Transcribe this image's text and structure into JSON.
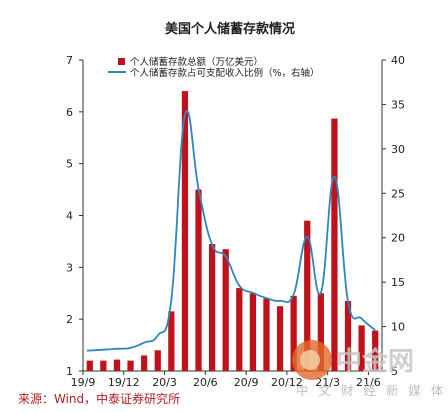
{
  "chart_data": {
    "type": "bar+line",
    "title": "美国个人储蓄存款情况",
    "legend": [
      "个人储蓄存款总额（万亿美元）",
      "个人储蓄存款占可支配收入比例（%，右轴）"
    ],
    "legend_position": "top-left",
    "colors": {
      "bar": "#c0121b",
      "line": "#2e86c1",
      "axis": "#333333"
    },
    "y_left": {
      "ticks": [
        "1",
        "2",
        "3",
        "4",
        "5",
        "6",
        "7"
      ],
      "ylim": [
        1,
        7
      ]
    },
    "y_right": {
      "ticks": [
        "5",
        "10",
        "15",
        "20",
        "25",
        "30",
        "35",
        "40"
      ],
      "ylim": [
        5,
        40
      ]
    },
    "x_ticks": [
      "19/9",
      "19/12",
      "20/3",
      "20/6",
      "20/9",
      "20/12",
      "21/3",
      "21/6"
    ],
    "x_tick_index": [
      0,
      3,
      6,
      9,
      12,
      15,
      18,
      21
    ],
    "categories": [
      "2019-09",
      "2019-10",
      "2019-11",
      "2019-12",
      "2020-01",
      "2020-02",
      "2020-03",
      "2020-04",
      "2020-05",
      "2020-06",
      "2020-07",
      "2020-08",
      "2020-09",
      "2020-10",
      "2020-11",
      "2020-12",
      "2021-01",
      "2021-02",
      "2021-03",
      "2021-04",
      "2021-05",
      "2021-06"
    ],
    "series": [
      {
        "name": "个人储蓄存款总额（万亿美元）",
        "kind": "bar",
        "axis": "left",
        "values": [
          1.2,
          1.2,
          1.22,
          1.2,
          1.3,
          1.4,
          2.15,
          6.4,
          4.5,
          3.45,
          3.35,
          2.6,
          2.5,
          2.4,
          2.25,
          2.45,
          3.9,
          2.5,
          5.87,
          2.35,
          1.88,
          1.78
        ]
      },
      {
        "name": "个人储蓄存款占可支配收入比例（%，右轴）",
        "kind": "line",
        "axis": "right",
        "values": [
          7.3,
          7.4,
          7.5,
          7.6,
          8.2,
          9.0,
          13.0,
          33.8,
          25.5,
          19.2,
          17.9,
          14.6,
          13.8,
          13.2,
          12.9,
          13.6,
          20.1,
          13.8,
          26.9,
          12.8,
          10.9,
          9.6
        ]
      }
    ]
  },
  "source_text": "来源：Wind，中泰证券研究所",
  "watermark": {
    "brand": "中金网",
    "sub": "中 文 财 经 新 媒 体"
  }
}
